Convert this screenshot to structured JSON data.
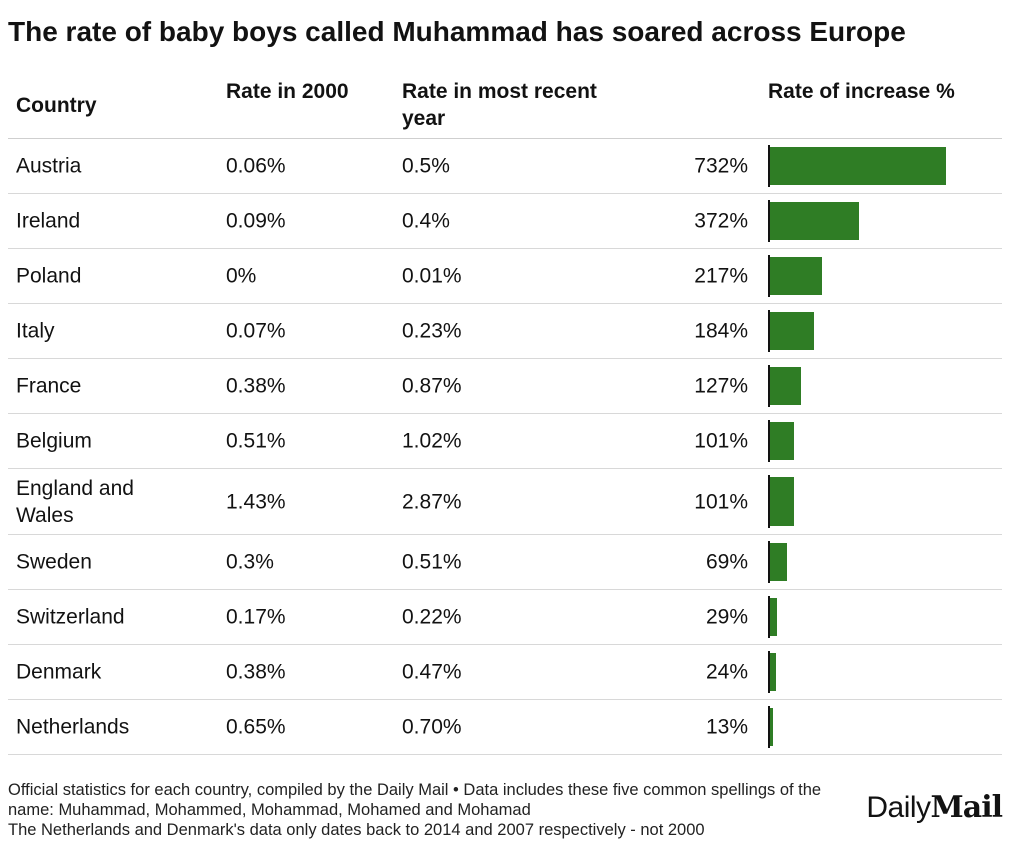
{
  "title": "The rate of baby boys called Muhammad has soared across Europe",
  "chart_data": {
    "type": "table",
    "columns": [
      "Country",
      "Rate in 2000",
      "Rate in most recent year",
      "Rate of increase %"
    ],
    "bar_max": 732,
    "rows": [
      {
        "country": "Austria",
        "rate_2000": "0.06%",
        "rate_recent": "0.5%",
        "increase": 732,
        "increase_label": "732%"
      },
      {
        "country": "Ireland",
        "rate_2000": "0.09%",
        "rate_recent": "0.4%",
        "increase": 372,
        "increase_label": "372%"
      },
      {
        "country": "Poland",
        "rate_2000": "0%",
        "rate_recent": "0.01%",
        "increase": 217,
        "increase_label": "217%"
      },
      {
        "country": "Italy",
        "rate_2000": "0.07%",
        "rate_recent": "0.23%",
        "increase": 184,
        "increase_label": "184%"
      },
      {
        "country": "France",
        "rate_2000": "0.38%",
        "rate_recent": "0.87%",
        "increase": 127,
        "increase_label": "127%"
      },
      {
        "country": "Belgium",
        "rate_2000": "0.51%",
        "rate_recent": "1.02%",
        "increase": 101,
        "increase_label": "101%"
      },
      {
        "country": "England and Wales",
        "rate_2000": "1.43%",
        "rate_recent": "2.87%",
        "increase": 101,
        "increase_label": "101%"
      },
      {
        "country": "Sweden",
        "rate_2000": "0.3%",
        "rate_recent": "0.51%",
        "increase": 69,
        "increase_label": "69%"
      },
      {
        "country": "Switzerland",
        "rate_2000": "0.17%",
        "rate_recent": "0.22%",
        "increase": 29,
        "increase_label": "29%"
      },
      {
        "country": "Denmark",
        "rate_2000": "0.38%",
        "rate_recent": "0.47%",
        "increase": 24,
        "increase_label": "24%"
      },
      {
        "country": "Netherlands",
        "rate_2000": "0.65%",
        "rate_recent": "0.70%",
        "increase": 13,
        "increase_label": "13%"
      }
    ],
    "bar_color": "#2f7d25"
  },
  "notes": {
    "line1": "Official statistics for each country, compiled by the Daily Mail • Data includes these five common spellings of the name: Muhammad, Mohammed, Mohammad, Mohamed and Mohamad",
    "line2": "The Netherlands and Denmark's data only dates back to 2014 and 2007 respectively - not 2000"
  },
  "logo": {
    "daily": "Daily",
    "mail": "Mail"
  }
}
